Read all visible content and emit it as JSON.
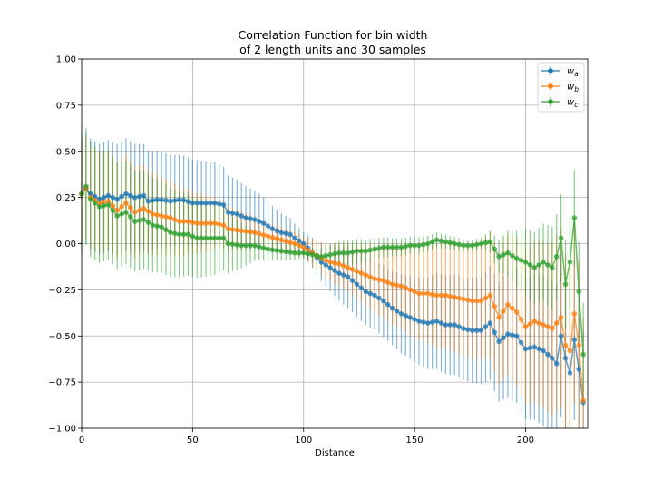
{
  "chart_data": {
    "type": "line",
    "title_line1": "Correlation Function for bin width",
    "title_line2": "of 2 length units and 30 samples",
    "xlabel": "Distance",
    "ylabel": "",
    "xlim": [
      0,
      228
    ],
    "ylim": [
      -1.0,
      1.0
    ],
    "xticks": [
      0,
      50,
      100,
      150,
      200
    ],
    "yticks": [
      -1.0,
      -0.75,
      -0.5,
      -0.25,
      0.0,
      0.25,
      0.5,
      0.75,
      1.0
    ],
    "xtick_labels": [
      "0",
      "50",
      "100",
      "150",
      "200"
    ],
    "ytick_labels": [
      "−1.00",
      "−0.75",
      "−0.50",
      "−0.25",
      "0.00",
      "0.25",
      "0.50",
      "0.75",
      "1.00"
    ],
    "grid": true,
    "legend_position": "top-right",
    "series": [
      {
        "name": "w_a",
        "label_base": "w",
        "label_sub": "a",
        "color": "#1f77b4",
        "key_points": [
          [
            0,
            0.27
          ],
          [
            2,
            0.3
          ],
          [
            4,
            0.27
          ],
          [
            8,
            0.24
          ],
          [
            12,
            0.26
          ],
          [
            16,
            0.24
          ],
          [
            20,
            0.27
          ],
          [
            24,
            0.25
          ],
          [
            28,
            0.26
          ],
          [
            30,
            0.23
          ],
          [
            35,
            0.24
          ],
          [
            40,
            0.23
          ],
          [
            45,
            0.24
          ],
          [
            50,
            0.22
          ],
          [
            55,
            0.22
          ],
          [
            60,
            0.22
          ],
          [
            64,
            0.21
          ],
          [
            66,
            0.17
          ],
          [
            70,
            0.16
          ],
          [
            74,
            0.14
          ],
          [
            78,
            0.13
          ],
          [
            82,
            0.11
          ],
          [
            86,
            0.08
          ],
          [
            90,
            0.06
          ],
          [
            94,
            0.05
          ],
          [
            96,
            0.03
          ],
          [
            100,
            0.0
          ],
          [
            104,
            -0.05
          ],
          [
            108,
            -0.1
          ],
          [
            112,
            -0.13
          ],
          [
            116,
            -0.16
          ],
          [
            120,
            -0.18
          ],
          [
            124,
            -0.22
          ],
          [
            128,
            -0.26
          ],
          [
            132,
            -0.28
          ],
          [
            136,
            -0.31
          ],
          [
            140,
            -0.35
          ],
          [
            144,
            -0.38
          ],
          [
            148,
            -0.4
          ],
          [
            152,
            -0.42
          ],
          [
            156,
            -0.43
          ],
          [
            160,
            -0.42
          ],
          [
            164,
            -0.44
          ],
          [
            168,
            -0.44
          ],
          [
            172,
            -0.46
          ],
          [
            176,
            -0.47
          ],
          [
            180,
            -0.47
          ],
          [
            184,
            -0.43
          ],
          [
            188,
            -0.53
          ],
          [
            192,
            -0.49
          ],
          [
            196,
            -0.5
          ],
          [
            200,
            -0.57
          ],
          [
            204,
            -0.56
          ],
          [
            208,
            -0.58
          ],
          [
            212,
            -0.62
          ],
          [
            214,
            -0.65
          ],
          [
            216,
            -0.5
          ],
          [
            218,
            -0.62
          ],
          [
            220,
            -0.7
          ],
          [
            222,
            -0.52
          ],
          [
            224,
            -0.68
          ],
          [
            226,
            -0.86
          ]
        ],
        "error_key": [
          [
            0,
            0.3
          ],
          [
            20,
            0.3
          ],
          [
            40,
            0.25
          ],
          [
            60,
            0.22
          ],
          [
            80,
            0.15
          ],
          [
            100,
            0.06
          ],
          [
            120,
            0.17
          ],
          [
            140,
            0.2
          ],
          [
            160,
            0.26
          ],
          [
            180,
            0.29
          ],
          [
            200,
            0.38
          ],
          [
            220,
            0.45
          ],
          [
            226,
            0.4
          ]
        ]
      },
      {
        "name": "w_b",
        "label_base": "w",
        "label_sub": "b",
        "color": "#ff7f0e",
        "key_points": [
          [
            0,
            0.27
          ],
          [
            2,
            0.3
          ],
          [
            4,
            0.25
          ],
          [
            8,
            0.22
          ],
          [
            12,
            0.23
          ],
          [
            16,
            0.18
          ],
          [
            20,
            0.22
          ],
          [
            24,
            0.17
          ],
          [
            28,
            0.19
          ],
          [
            32,
            0.16
          ],
          [
            36,
            0.15
          ],
          [
            40,
            0.14
          ],
          [
            44,
            0.12
          ],
          [
            48,
            0.12
          ],
          [
            52,
            0.11
          ],
          [
            56,
            0.11
          ],
          [
            60,
            0.11
          ],
          [
            64,
            0.1
          ],
          [
            66,
            0.08
          ],
          [
            72,
            0.07
          ],
          [
            78,
            0.06
          ],
          [
            84,
            0.04
          ],
          [
            90,
            0.02
          ],
          [
            96,
            0.0
          ],
          [
            100,
            -0.02
          ],
          [
            104,
            -0.05
          ],
          [
            108,
            -0.08
          ],
          [
            112,
            -0.1
          ],
          [
            116,
            -0.11
          ],
          [
            120,
            -0.13
          ],
          [
            124,
            -0.15
          ],
          [
            128,
            -0.17
          ],
          [
            132,
            -0.19
          ],
          [
            136,
            -0.2
          ],
          [
            140,
            -0.22
          ],
          [
            144,
            -0.23
          ],
          [
            148,
            -0.25
          ],
          [
            152,
            -0.27
          ],
          [
            156,
            -0.27
          ],
          [
            160,
            -0.28
          ],
          [
            164,
            -0.28
          ],
          [
            168,
            -0.29
          ],
          [
            172,
            -0.3
          ],
          [
            176,
            -0.31
          ],
          [
            180,
            -0.31
          ],
          [
            184,
            -0.28
          ],
          [
            188,
            -0.4
          ],
          [
            192,
            -0.33
          ],
          [
            196,
            -0.37
          ],
          [
            200,
            -0.45
          ],
          [
            204,
            -0.42
          ],
          [
            208,
            -0.44
          ],
          [
            212,
            -0.46
          ],
          [
            216,
            -0.4
          ],
          [
            218,
            -0.55
          ],
          [
            220,
            -0.58
          ],
          [
            222,
            -0.38
          ],
          [
            224,
            -0.55
          ],
          [
            226,
            -0.85
          ]
        ],
        "error_key": [
          [
            0,
            0.28
          ],
          [
            20,
            0.26
          ],
          [
            40,
            0.2
          ],
          [
            60,
            0.14
          ],
          [
            80,
            0.08
          ],
          [
            100,
            0.06
          ],
          [
            120,
            0.13
          ],
          [
            140,
            0.22
          ],
          [
            160,
            0.28
          ],
          [
            180,
            0.32
          ],
          [
            200,
            0.42
          ],
          [
            220,
            0.5
          ],
          [
            226,
            0.45
          ]
        ]
      },
      {
        "name": "w_c",
        "label_base": "w",
        "label_sub": "c",
        "color": "#2ca02c",
        "key_points": [
          [
            0,
            0.27
          ],
          [
            2,
            0.31
          ],
          [
            4,
            0.24
          ],
          [
            8,
            0.2
          ],
          [
            12,
            0.21
          ],
          [
            16,
            0.15
          ],
          [
            20,
            0.17
          ],
          [
            24,
            0.12
          ],
          [
            28,
            0.13
          ],
          [
            32,
            0.1
          ],
          [
            36,
            0.09
          ],
          [
            40,
            0.06
          ],
          [
            44,
            0.05
          ],
          [
            48,
            0.05
          ],
          [
            52,
            0.03
          ],
          [
            56,
            0.03
          ],
          [
            60,
            0.03
          ],
          [
            64,
            0.03
          ],
          [
            66,
            0.0
          ],
          [
            72,
            -0.01
          ],
          [
            78,
            -0.01
          ],
          [
            84,
            -0.03
          ],
          [
            90,
            -0.04
          ],
          [
            96,
            -0.05
          ],
          [
            100,
            -0.05
          ],
          [
            104,
            -0.06
          ],
          [
            108,
            -0.07
          ],
          [
            112,
            -0.06
          ],
          [
            116,
            -0.05
          ],
          [
            120,
            -0.05
          ],
          [
            124,
            -0.04
          ],
          [
            128,
            -0.04
          ],
          [
            132,
            -0.03
          ],
          [
            136,
            -0.02
          ],
          [
            140,
            -0.02
          ],
          [
            144,
            -0.02
          ],
          [
            148,
            -0.01
          ],
          [
            152,
            -0.01
          ],
          [
            156,
            0.0
          ],
          [
            160,
            0.02
          ],
          [
            164,
            0.01
          ],
          [
            168,
            0.0
          ],
          [
            172,
            -0.01
          ],
          [
            176,
            -0.01
          ],
          [
            180,
            0.0
          ],
          [
            184,
            0.01
          ],
          [
            188,
            -0.07
          ],
          [
            192,
            -0.05
          ],
          [
            196,
            -0.08
          ],
          [
            200,
            -0.1
          ],
          [
            204,
            -0.13
          ],
          [
            208,
            -0.1
          ],
          [
            212,
            -0.13
          ],
          [
            214,
            -0.07
          ],
          [
            216,
            0.03
          ],
          [
            218,
            -0.22
          ],
          [
            220,
            -0.1
          ],
          [
            222,
            0.14
          ],
          [
            224,
            -0.26
          ],
          [
            226,
            -0.6
          ]
        ],
        "error_key": [
          [
            0,
            0.32
          ],
          [
            20,
            0.28
          ],
          [
            40,
            0.24
          ],
          [
            60,
            0.2
          ],
          [
            80,
            0.07
          ],
          [
            100,
            0.03
          ],
          [
            120,
            0.07
          ],
          [
            140,
            0.05
          ],
          [
            160,
            0.04
          ],
          [
            180,
            0.03
          ],
          [
            200,
            0.18
          ],
          [
            220,
            0.25
          ],
          [
            226,
            0.28
          ]
        ]
      }
    ]
  }
}
